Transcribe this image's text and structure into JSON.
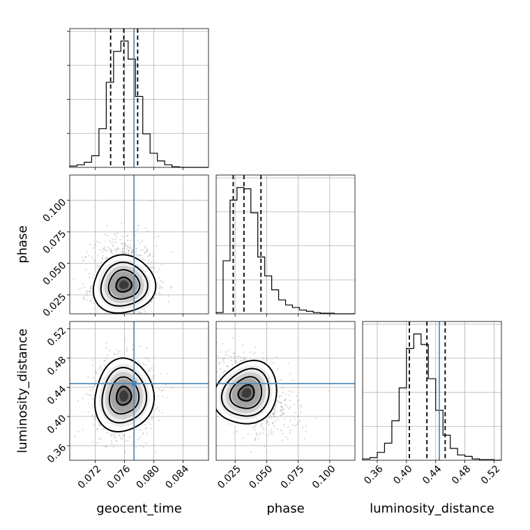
{
  "chart_data": {
    "type": "corner",
    "parameters": [
      "geocent_time",
      "phase",
      "luminosity_distance"
    ],
    "truth": {
      "geocent_time": 0.0773,
      "phase": null,
      "luminosity_distance": 0.445
    },
    "colors": {
      "histogram": "#000000",
      "truth": "#4682b4",
      "scatter": "#808080",
      "density": "#000000"
    },
    "axes": {
      "geocent_time": {
        "label": "geocent_time",
        "range": [
          0.0685,
          0.0875
        ],
        "ticks": [
          0.072,
          0.076,
          0.08,
          0.084
        ],
        "tick_labels": [
          "0.072",
          "0.076",
          "0.080",
          "0.084"
        ]
      },
      "phase": {
        "label": "phase",
        "range": [
          0.01,
          0.12
        ],
        "ticks": [
          0.025,
          0.05,
          0.075,
          0.1
        ],
        "tick_labels": [
          "0.025",
          "0.050",
          "0.075",
          "0.100"
        ]
      },
      "luminosity_distance": {
        "label": "luminosity_distance",
        "range": [
          0.34,
          0.53
        ],
        "ticks": [
          0.36,
          0.4,
          0.44,
          0.48,
          0.52
        ],
        "tick_labels": [
          "0.36",
          "0.40",
          "0.44",
          "0.48",
          "0.52"
        ]
      }
    },
    "marginals": {
      "geocent_time": {
        "bin_edges": [
          0.0685,
          0.0695,
          0.0705,
          0.0715,
          0.0725,
          0.0735,
          0.0745,
          0.0755,
          0.0765,
          0.0775,
          0.0785,
          0.0795,
          0.0805,
          0.0815,
          0.0825,
          0.0835,
          0.0845,
          0.0855,
          0.0865,
          0.0875
        ],
        "counts": [
          0.01,
          0.02,
          0.04,
          0.09,
          0.3,
          0.66,
          0.9,
          0.98,
          0.84,
          0.55,
          0.26,
          0.11,
          0.05,
          0.02,
          0.005,
          0,
          0,
          0,
          0
        ],
        "quantiles": [
          0.0741,
          0.0759,
          0.0778
        ]
      },
      "phase": {
        "bin_edges": [
          0.01,
          0.0155,
          0.021,
          0.0265,
          0.032,
          0.0375,
          0.043,
          0.0485,
          0.054,
          0.0595,
          0.065,
          0.0705,
          0.076,
          0.0815,
          0.087,
          0.0925,
          0.098,
          0.1035,
          0.109,
          0.1145,
          0.12
        ],
        "counts": [
          0.01,
          0.42,
          0.9,
          1.0,
          0.99,
          0.8,
          0.45,
          0.3,
          0.19,
          0.11,
          0.07,
          0.05,
          0.03,
          0.02,
          0.01,
          0.005,
          0.005,
          0,
          0,
          0
        ],
        "quantiles": [
          0.0235,
          0.032,
          0.0455
        ]
      },
      "luminosity_distance": {
        "bin_edges": [
          0.34,
          0.35,
          0.36,
          0.37,
          0.38,
          0.39,
          0.4,
          0.41,
          0.42,
          0.43,
          0.44,
          0.45,
          0.46,
          0.47,
          0.48,
          0.49,
          0.5,
          0.51,
          0.52,
          0.53
        ],
        "counts": [
          0.01,
          0.02,
          0.06,
          0.13,
          0.3,
          0.55,
          0.85,
          0.96,
          0.88,
          0.62,
          0.38,
          0.19,
          0.09,
          0.04,
          0.03,
          0.01,
          0.005,
          0.005,
          0
        ],
        "quantiles": [
          0.404,
          0.428,
          0.453
        ]
      }
    },
    "joint": [
      {
        "x": "geocent_time",
        "y": "phase",
        "center": [
          0.0759,
          0.033
        ],
        "spread": [
          0.002,
          0.011
        ],
        "contour_levels": [
          0.5,
          1.0,
          1.5,
          2.0
        ]
      },
      {
        "x": "geocent_time",
        "y": "luminosity_distance",
        "center": [
          0.0759,
          0.428
        ],
        "spread": [
          0.0019,
          0.024
        ],
        "contour_levels": [
          0.5,
          1.0,
          1.5,
          2.0
        ]
      },
      {
        "x": "phase",
        "y": "luminosity_distance",
        "center": [
          0.034,
          0.432
        ],
        "spread": [
          0.011,
          0.022
        ],
        "correlation": -0.35,
        "contour_levels": [
          0.5,
          1.0,
          1.5,
          2.0
        ]
      }
    ]
  }
}
